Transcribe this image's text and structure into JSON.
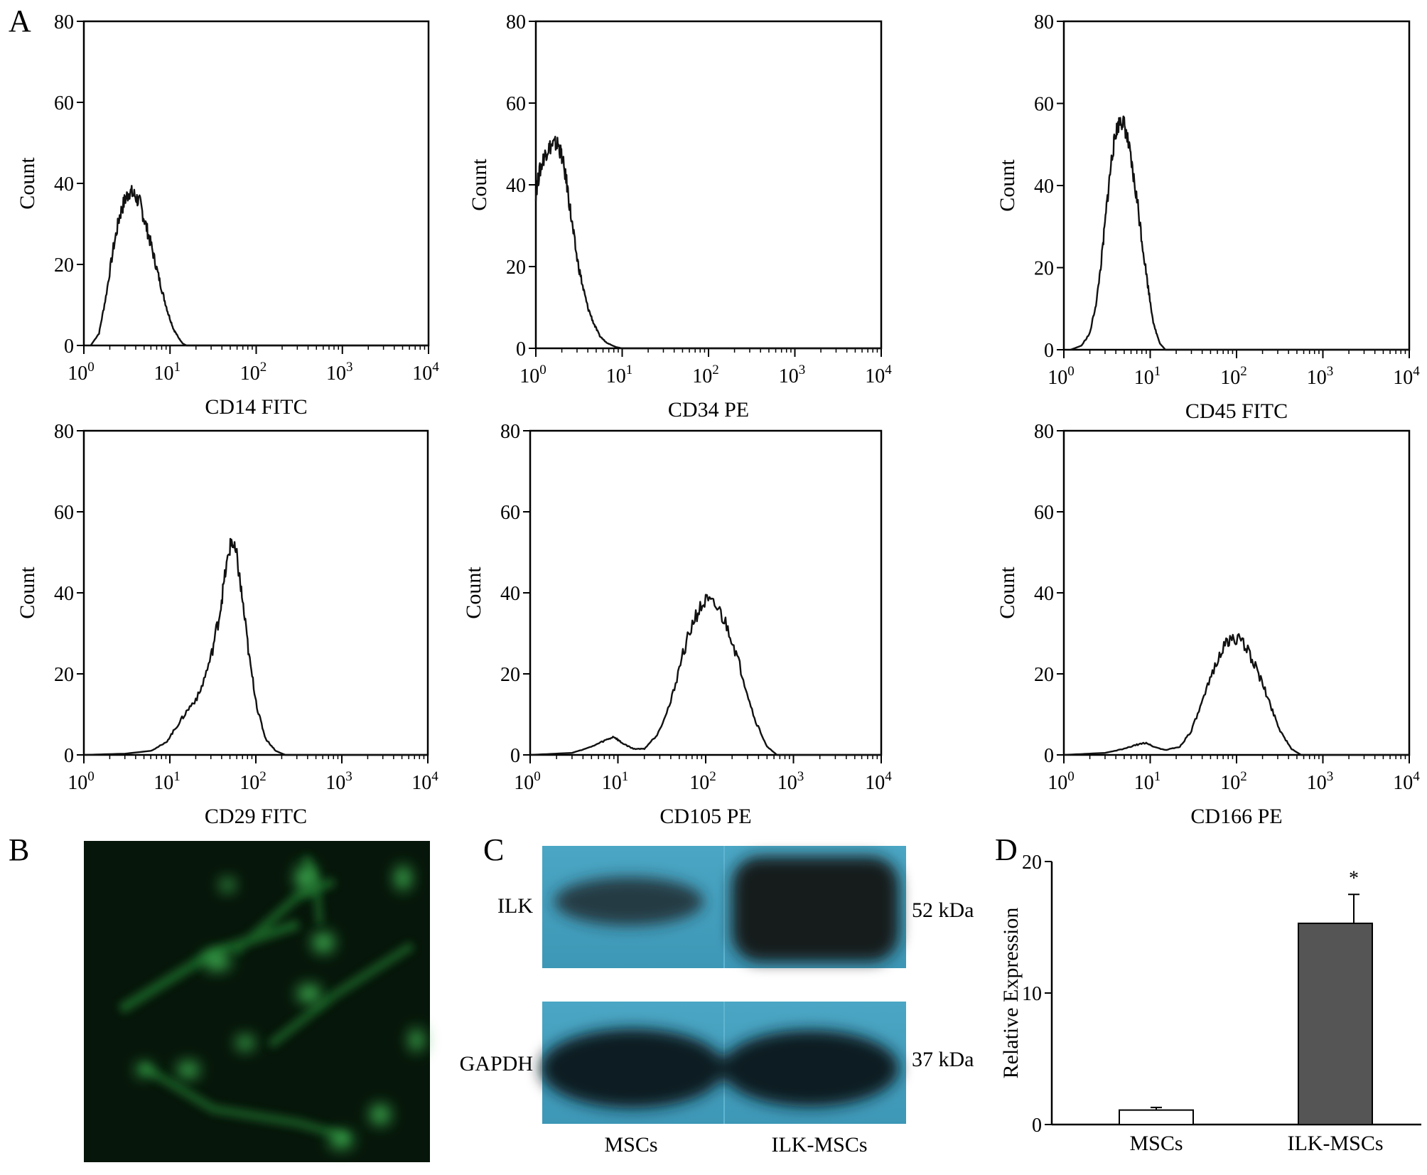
{
  "panels": {
    "a": "A",
    "b": "B",
    "c": "C",
    "d": "D"
  },
  "chart_data": [
    {
      "type": "line",
      "xlabel": "CD14 FITC",
      "ylabel": "Count",
      "xscale": "log",
      "xlim": [
        1,
        10000
      ],
      "ylim": [
        0,
        80
      ],
      "xticks": [
        "10^0",
        "10^1",
        "10^2",
        "10^3",
        "10^4"
      ],
      "yticks": [
        0,
        20,
        40,
        60,
        80
      ],
      "x": [
        1.2,
        1.5,
        1.8,
        2.2,
        2.6,
        3.0,
        3.4,
        3.9,
        4.5,
        5.2,
        6.0,
        7.0,
        8.2,
        9.5,
        11.0,
        12.5,
        14.0,
        15.5
      ],
      "y": [
        0,
        3,
        12,
        24,
        32,
        36,
        38,
        37,
        35,
        30,
        25,
        19,
        13,
        8,
        4,
        2,
        0.5,
        0
      ]
    },
    {
      "type": "line",
      "xlabel": "CD34 PE",
      "ylabel": "Count",
      "xscale": "log",
      "xlim": [
        1,
        10000
      ],
      "ylim": [
        0,
        80
      ],
      "xticks": [
        "10^0",
        "10^1",
        "10^2",
        "10^3",
        "10^4"
      ],
      "yticks": [
        0,
        20,
        40,
        60,
        80
      ],
      "x": [
        1.0,
        1.1,
        1.25,
        1.4,
        1.6,
        1.8,
        2.0,
        2.3,
        2.6,
        3.0,
        3.5,
        4.0,
        4.7,
        5.5,
        6.5,
        7.5,
        8.5,
        10.0
      ],
      "y": [
        38,
        43,
        47,
        49,
        50,
        50,
        47,
        40,
        31,
        22,
        15,
        10,
        6,
        3,
        1.5,
        0.8,
        0.3,
        0
      ]
    },
    {
      "type": "line",
      "xlabel": "CD45 FITC",
      "ylabel": "Count",
      "xscale": "log",
      "xlim": [
        1,
        10000
      ],
      "ylim": [
        0,
        80
      ],
      "xticks": [
        "10^0",
        "10^1",
        "10^2",
        "10^3",
        "10^4"
      ],
      "yticks": [
        0,
        20,
        40,
        60,
        80
      ],
      "x": [
        1.2,
        1.6,
        2.0,
        2.4,
        2.8,
        3.2,
        3.6,
        4.0,
        4.5,
        5.0,
        5.6,
        6.3,
        7.2,
        8.2,
        9.5,
        11.0,
        13.0,
        15.0
      ],
      "y": [
        0,
        1,
        4,
        12,
        24,
        37,
        47,
        53,
        56,
        55,
        50,
        43,
        35,
        25,
        15,
        6,
        1.5,
        0
      ]
    },
    {
      "type": "line",
      "xlabel": "CD29 FITC",
      "ylabel": "Count",
      "xscale": "log",
      "xlim": [
        1,
        10000
      ],
      "ylim": [
        0,
        80
      ],
      "xticks": [
        "10^0",
        "10^1",
        "10^2",
        "10^3",
        "10^4"
      ],
      "yticks": [
        0,
        20,
        40,
        60,
        80
      ],
      "x": [
        1.0,
        3.0,
        6.0,
        9.0,
        12.0,
        16.0,
        22.0,
        30.0,
        38.0,
        45.0,
        52.0,
        60.0,
        70.0,
        85.0,
        105.0,
        130.0,
        170.0,
        220.0
      ],
      "y": [
        0,
        0.3,
        1,
        3,
        7,
        11,
        15,
        24,
        35,
        46,
        53,
        49,
        38,
        23,
        11,
        4,
        1,
        0
      ]
    },
    {
      "type": "line",
      "xlabel": "CD105 PE",
      "ylabel": "Count",
      "xscale": "log",
      "xlim": [
        1,
        10000
      ],
      "ylim": [
        0,
        80
      ],
      "xticks": [
        "10^0",
        "10^1",
        "10^2",
        "10^3",
        "10^4"
      ],
      "yticks": [
        0,
        20,
        40,
        60,
        80
      ],
      "x": [
        1.0,
        3.0,
        5.0,
        7.0,
        9.0,
        11.0,
        15.0,
        20.0,
        28.0,
        40.0,
        55.0,
        75.0,
        100.0,
        140.0,
        190.0,
        260.0,
        360.0,
        500.0,
        650.0
      ],
      "y": [
        0,
        0.5,
        2,
        3.5,
        4.5,
        3,
        1.5,
        1.5,
        5,
        13,
        25,
        34,
        38,
        36,
        30,
        20,
        9,
        2,
        0
      ]
    },
    {
      "type": "line",
      "xlabel": "CD166 PE",
      "ylabel": "Count",
      "xscale": "log",
      "xlim": [
        1,
        10000
      ],
      "ylim": [
        0,
        80
      ],
      "xticks": [
        "10^0",
        "10^1",
        "10^2",
        "10^3",
        "10^4"
      ],
      "yticks": [
        0,
        20,
        40,
        60,
        80
      ],
      "x": [
        1.0,
        3.0,
        5.0,
        7.0,
        9.0,
        11.0,
        15.0,
        22.0,
        30.0,
        42.0,
        58.0,
        78.0,
        100.0,
        135.0,
        180.0,
        240.0,
        320.0,
        430.0,
        560.0
      ],
      "y": [
        0,
        0.5,
        1.5,
        2.5,
        3.0,
        2,
        1.2,
        2,
        6,
        14,
        23,
        28,
        29,
        26,
        20,
        13,
        6,
        1.5,
        0
      ]
    },
    {
      "type": "bar",
      "categories": [
        "MSCs",
        "ILK-MSCs"
      ],
      "values": [
        1.1,
        15.3
      ],
      "errors": [
        0.2,
        2.2
      ],
      "significance": [
        "",
        "*"
      ],
      "ylabel": "Relative Expression",
      "ylim": [
        0,
        20
      ],
      "yticks": [
        0,
        10,
        20
      ],
      "colors": [
        "#ffffff",
        "#555555"
      ]
    }
  ],
  "blot": {
    "lanes": [
      "MSCs",
      "ILK-MSCs"
    ],
    "bands": [
      {
        "label": "ILK",
        "size": "52 kDa"
      },
      {
        "label": "GAPDH",
        "size": "37 kDa"
      }
    ]
  }
}
